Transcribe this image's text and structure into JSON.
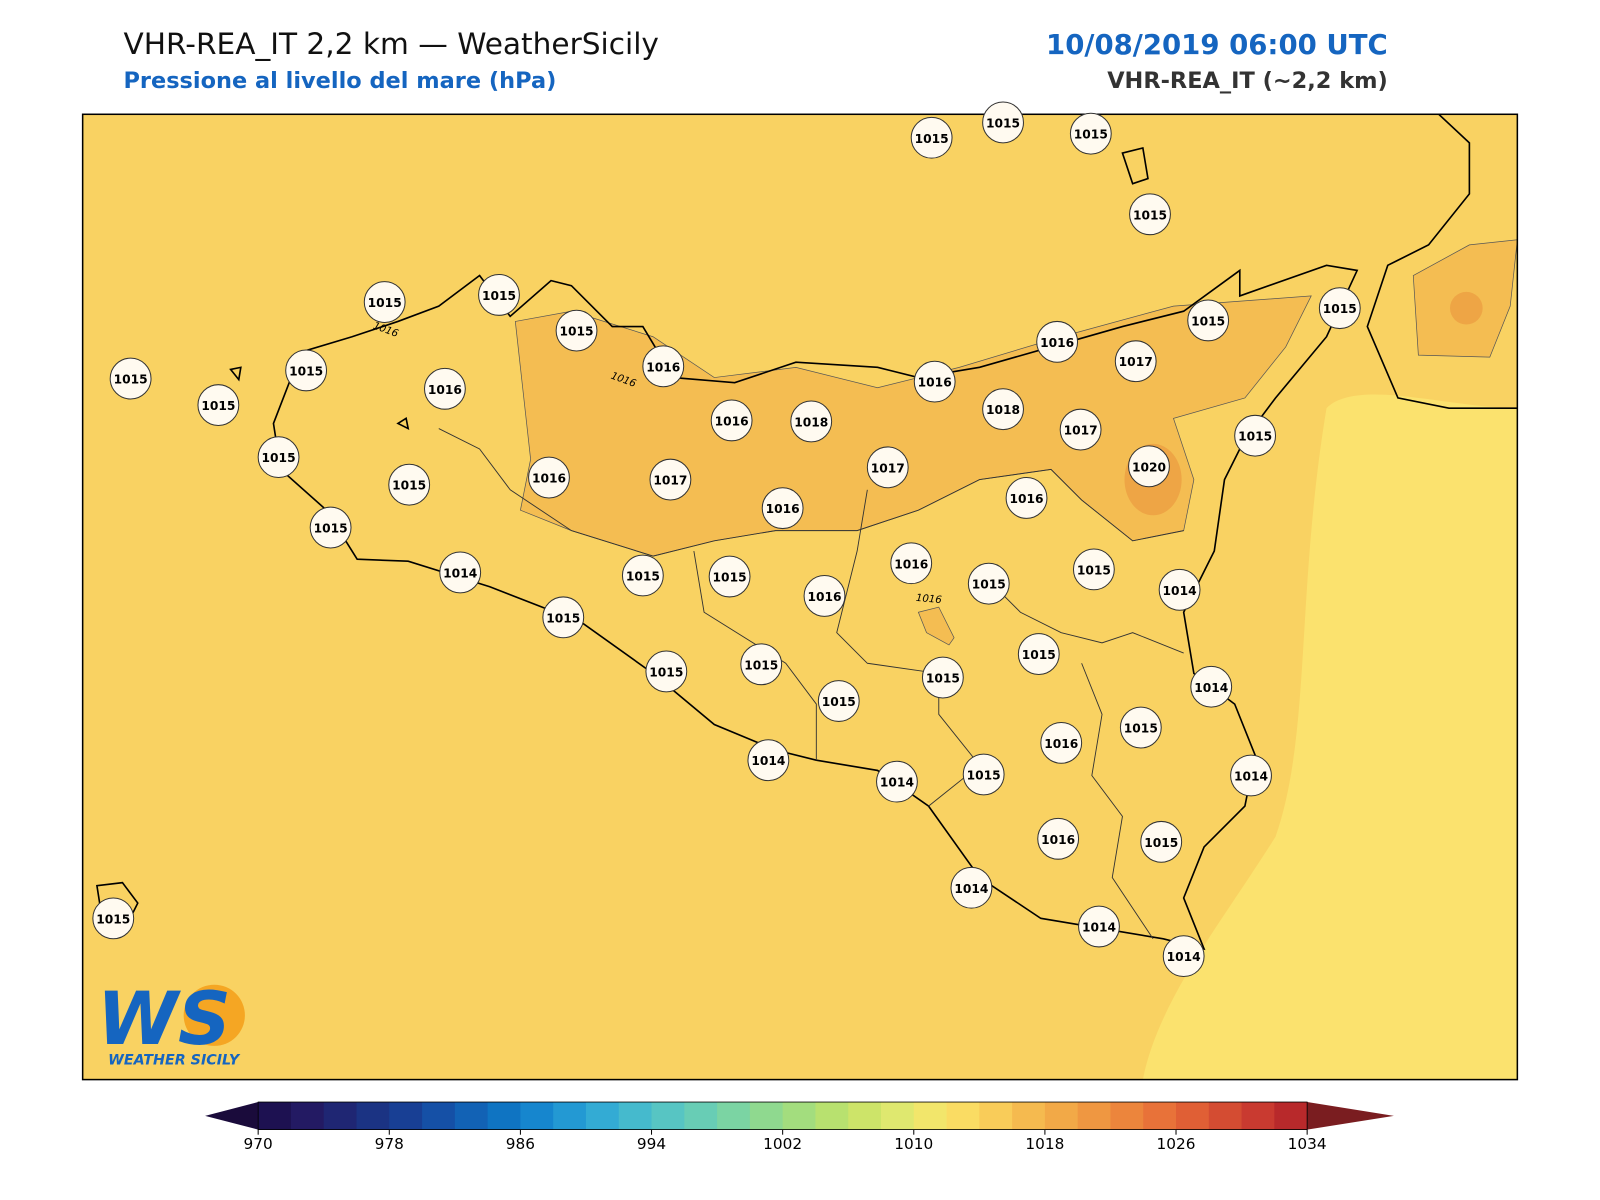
{
  "header": {
    "title": "VHR-REA_IT 2,2 km — WeatherSicily",
    "subtitle": "Pressione al livello del mare (hPa)",
    "datetime": "10/08/2019 06:00 UTC",
    "model": "VHR-REA_IT (~2,2 km)"
  },
  "map": {
    "stations": [
      1015,
      1015,
      1015,
      1015,
      1015,
      1015,
      1015,
      1015,
      1015,
      1015,
      1015,
      1016,
      1016,
      1017,
      1016,
      1016,
      1015,
      1016,
      1018,
      1018,
      1017,
      1015,
      1015,
      1020,
      1017,
      1016,
      1017,
      1015,
      1016,
      1016,
      1015,
      1016,
      1015,
      1014,
      1015,
      1015,
      1015,
      1014,
      1016,
      1015,
      1015,
      1015,
      1015,
      1015,
      1014,
      1015,
      1015,
      1016,
      1014,
      1014,
      1015,
      1014,
      1016,
      1015,
      1014,
      1015,
      1014,
      1014
    ],
    "contour_labels": [
      1016,
      1016,
      1016
    ]
  },
  "logo": {
    "text": "WS",
    "subtext": "WEATHER SICILY"
  },
  "colorbar": {
    "lim": [
      970,
      1034
    ],
    "ticks": [
      970,
      978,
      986,
      994,
      1002,
      1010,
      1018,
      1026,
      1034
    ],
    "under_color": "#1a0b3b",
    "over_color": "#7a1d20",
    "colors": [
      "#1d1151",
      "#231a63",
      "#1f2673",
      "#1b3383",
      "#183f94",
      "#1550a6",
      "#1262b5",
      "#0f74c2",
      "#1686ce",
      "#2399d3",
      "#33abd4",
      "#45bacd",
      "#57c5c3",
      "#68cdb5",
      "#7bd4a3",
      "#8fd98f",
      "#a3dd7e",
      "#b8e16f",
      "#cde469",
      "#dfe86f",
      "#f2e66b",
      "#fadc63",
      "#f9cc59",
      "#f5ba4f",
      "#f2a947",
      "#ef9741",
      "#ec853c",
      "#e87239",
      "#e05f35",
      "#d44c32",
      "#c93a30",
      "#b8292b"
    ]
  }
}
